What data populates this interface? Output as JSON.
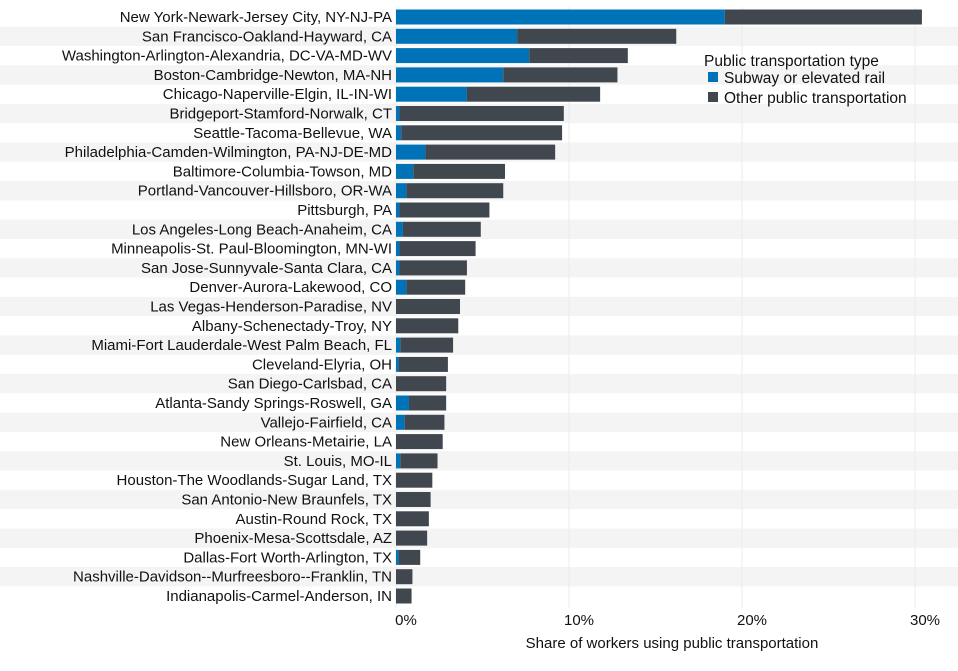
{
  "chart_data": {
    "type": "bar",
    "orientation": "horizontal",
    "stacked": true,
    "xlabel": "Share of workers using public transportation",
    "xlim": [
      0,
      32
    ],
    "xticks": [
      0,
      10,
      20,
      30
    ],
    "xtick_labels": [
      "0%",
      "10%",
      "20%",
      "30%"
    ],
    "grid": true,
    "legend": {
      "title": "Public transportation type",
      "placement": "top-right"
    },
    "categories": [
      "New York-Newark-Jersey City, NY-NJ-PA",
      "San Francisco-Oakland-Hayward, CA",
      "Washington-Arlington-Alexandria, DC-VA-MD-WV",
      "Boston-Cambridge-Newton, MA-NH",
      "Chicago-Naperville-Elgin, IL-IN-WI",
      "Bridgeport-Stamford-Norwalk, CT",
      "Seattle-Tacoma-Bellevue, WA",
      "Philadelphia-Camden-Wilmington, PA-NJ-DE-MD",
      "Baltimore-Columbia-Towson, MD",
      "Portland-Vancouver-Hillsboro, OR-WA",
      "Pittsburgh, PA",
      "Los Angeles-Long Beach-Anaheim, CA",
      "Minneapolis-St. Paul-Bloomington, MN-WI",
      "San Jose-Sunnyvale-Santa Clara, CA",
      "Denver-Aurora-Lakewood, CO",
      "Las Vegas-Henderson-Paradise, NV",
      "Albany-Schenectady-Troy, NY",
      "Miami-Fort Lauderdale-West Palm Beach, FL",
      "Cleveland-Elyria, OH",
      "San Diego-Carlsbad, CA",
      "Atlanta-Sandy Springs-Roswell, GA",
      "Vallejo-Fairfield, CA",
      "New Orleans-Metairie, LA",
      "St. Louis, MO-IL",
      "Houston-The Woodlands-Sugar Land, TX",
      "San Antonio-New Braunfels, TX",
      "Austin-Round Rock, TX",
      "Phoenix-Mesa-Scottsdale, AZ",
      "Dallas-Fort Worth-Arlington, TX",
      "Nashville-Davidson--Murfreesboro--Franklin, TN",
      "Indianapolis-Carmel-Anderson, IN"
    ],
    "series": [
      {
        "name": "Subway or elevated rail",
        "color": "#0072b8",
        "values": [
          19.0,
          7.0,
          7.7,
          6.2,
          4.1,
          0.2,
          0.3,
          1.7,
          1.0,
          0.6,
          0.2,
          0.4,
          0.2,
          0.2,
          0.6,
          0,
          0,
          0.25,
          0.15,
          0,
          0.75,
          0.5,
          0,
          0.25,
          0,
          0,
          0,
          0,
          0.15,
          0,
          0
        ]
      },
      {
        "name": "Other public transportation",
        "color": "#41474f",
        "values": [
          11.4,
          9.2,
          5.7,
          6.6,
          7.7,
          9.5,
          9.3,
          7.5,
          5.3,
          5.6,
          5.2,
          4.5,
          4.4,
          3.9,
          3.4,
          3.7,
          3.6,
          3.05,
          2.85,
          2.9,
          2.15,
          2.3,
          2.7,
          2.15,
          2.1,
          2.0,
          1.9,
          1.8,
          1.25,
          0.95,
          0.9
        ]
      }
    ]
  }
}
